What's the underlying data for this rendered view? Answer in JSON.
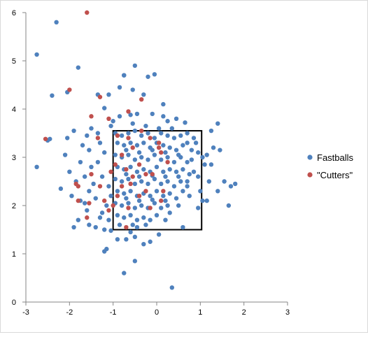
{
  "chart_data": {
    "type": "scatter",
    "title": "",
    "xlabel": "",
    "ylabel": "",
    "xlim": [
      -3,
      3
    ],
    "ylim": [
      0,
      6
    ],
    "x_ticks": [
      -3,
      -2,
      -1,
      0,
      1,
      2,
      3
    ],
    "y_ticks": [
      0,
      1,
      2,
      3,
      4,
      5,
      6
    ],
    "x_tick_labels": [
      "-3",
      "-2",
      "-1",
      "0",
      "1",
      "2",
      "3"
    ],
    "y_tick_labels": [
      "0",
      "1",
      "2",
      "3",
      "4",
      "5",
      "6"
    ],
    "grid": false,
    "legend_position": "right",
    "strike_zone": {
      "x": [
        -1.0,
        1.03
      ],
      "y": [
        1.5,
        3.55
      ]
    },
    "series": [
      {
        "name": "Fastballs",
        "color": "#4f81bd",
        "points": [
          [
            -2.3,
            5.8
          ],
          [
            -2.75,
            5.13
          ],
          [
            -2.4,
            4.28
          ],
          [
            -1.8,
            4.86
          ],
          [
            -2.05,
            4.35
          ],
          [
            -1.35,
            4.3
          ],
          [
            -1.2,
            4.02
          ],
          [
            -0.75,
            4.7
          ],
          [
            -0.5,
            4.9
          ],
          [
            -0.05,
            4.72
          ],
          [
            -0.2,
            4.67
          ],
          [
            -0.55,
            4.4
          ],
          [
            -0.3,
            4.3
          ],
          [
            0.15,
            4.1
          ],
          [
            -0.75,
            4.7
          ],
          [
            -0.85,
            4.45
          ],
          [
            -1.1,
            4.3
          ],
          [
            -2.5,
            3.35
          ],
          [
            -2.45,
            3.38
          ],
          [
            -2.75,
            2.8
          ],
          [
            -2.05,
            3.4
          ],
          [
            -1.9,
            3.55
          ],
          [
            -2.1,
            3.05
          ],
          [
            -2.0,
            2.7
          ],
          [
            -1.85,
            2.5
          ],
          [
            -2.2,
            2.35
          ],
          [
            -1.95,
            2.2
          ],
          [
            -1.75,
            2.1
          ],
          [
            -1.6,
            1.9
          ],
          [
            -1.8,
            1.7
          ],
          [
            -1.9,
            1.55
          ],
          [
            -1.55,
            1.6
          ],
          [
            -1.4,
            1.55
          ],
          [
            -1.2,
            1.5
          ],
          [
            -1.05,
            1.48
          ],
          [
            -1.3,
            1.75
          ],
          [
            -1.7,
            3.25
          ],
          [
            -1.6,
            3.45
          ],
          [
            -1.5,
            3.6
          ],
          [
            -1.35,
            3.5
          ],
          [
            -1.55,
            3.15
          ],
          [
            -1.75,
            2.9
          ],
          [
            -1.5,
            2.8
          ],
          [
            -1.65,
            2.6
          ],
          [
            -1.45,
            2.45
          ],
          [
            -1.55,
            2.3
          ],
          [
            -1.4,
            2.15
          ],
          [
            -1.65,
            2.05
          ],
          [
            -1.35,
            2.9
          ],
          [
            -1.2,
            3.1
          ],
          [
            -1.3,
            3.3
          ],
          [
            -1.25,
            2.6
          ],
          [
            -1.1,
            2.4
          ],
          [
            -1.05,
            2.2
          ],
          [
            -1.15,
            2.0
          ],
          [
            -1.25,
            1.85
          ],
          [
            -1.1,
            1.7
          ],
          [
            -1.05,
            3.65
          ],
          [
            -1.0,
            3.75
          ],
          [
            -0.85,
            3.85
          ],
          [
            -0.6,
            3.88
          ],
          [
            -0.45,
            3.9
          ],
          [
            -0.1,
            3.9
          ],
          [
            0.15,
            3.85
          ],
          [
            0.25,
            3.75
          ],
          [
            0.45,
            3.8
          ],
          [
            0.65,
            3.72
          ],
          [
            0.7,
            3.5
          ],
          [
            0.85,
            3.4
          ],
          [
            0.9,
            3.3
          ],
          [
            0.95,
            3.1
          ],
          [
            1.05,
            3.0
          ],
          [
            1.1,
            2.85
          ],
          [
            0.95,
            2.6
          ],
          [
            1.0,
            2.3
          ],
          [
            1.05,
            2.1
          ],
          [
            0.95,
            1.95
          ],
          [
            0.6,
            1.55
          ],
          [
            1.25,
            3.55
          ],
          [
            1.3,
            3.2
          ],
          [
            1.45,
            3.15
          ],
          [
            1.25,
            2.85
          ],
          [
            1.2,
            2.5
          ],
          [
            1.4,
            2.3
          ],
          [
            1.15,
            2.1
          ],
          [
            1.55,
            2.5
          ],
          [
            1.7,
            2.4
          ],
          [
            1.8,
            2.45
          ],
          [
            1.65,
            2.0
          ],
          [
            1.4,
            3.7
          ],
          [
            1.15,
            3.05
          ],
          [
            0.8,
            2.95
          ],
          [
            0.85,
            2.7
          ],
          [
            0.7,
            2.5
          ],
          [
            0.75,
            2.2
          ],
          [
            0.5,
            2.0
          ],
          [
            0.3,
            1.85
          ],
          [
            0.2,
            1.7
          ],
          [
            -0.9,
            1.3
          ],
          [
            -0.7,
            1.3
          ],
          [
            -0.5,
            1.35
          ],
          [
            -0.3,
            1.2
          ],
          [
            -1.15,
            1.1
          ],
          [
            -1.2,
            1.05
          ],
          [
            -0.75,
            0.6
          ],
          [
            -0.5,
            0.85
          ],
          [
            0.35,
            0.3
          ],
          [
            0.05,
            1.4
          ],
          [
            -0.15,
            1.25
          ],
          [
            -0.6,
            1.45
          ],
          [
            -0.45,
            1.55
          ],
          [
            -0.95,
            3.5
          ],
          [
            -0.8,
            3.45
          ],
          [
            -0.65,
            3.5
          ],
          [
            -0.5,
            3.55
          ],
          [
            -0.35,
            3.45
          ],
          [
            -0.2,
            3.5
          ],
          [
            -0.05,
            3.4
          ],
          [
            0.1,
            3.5
          ],
          [
            0.25,
            3.45
          ],
          [
            0.4,
            3.4
          ],
          [
            0.55,
            3.45
          ],
          [
            0.7,
            3.3
          ],
          [
            -0.9,
            3.3
          ],
          [
            -0.75,
            3.25
          ],
          [
            -0.6,
            3.3
          ],
          [
            -0.45,
            3.25
          ],
          [
            -0.3,
            3.3
          ],
          [
            -0.15,
            3.2
          ],
          [
            0.0,
            3.3
          ],
          [
            0.15,
            3.25
          ],
          [
            0.3,
            3.2
          ],
          [
            0.45,
            3.15
          ],
          [
            0.6,
            3.25
          ],
          [
            0.8,
            3.15
          ],
          [
            -0.95,
            3.05
          ],
          [
            -0.8,
            3.0
          ],
          [
            -0.65,
            3.05
          ],
          [
            -0.5,
            2.95
          ],
          [
            -0.35,
            3.0
          ],
          [
            -0.2,
            2.95
          ],
          [
            -0.05,
            3.05
          ],
          [
            0.1,
            2.95
          ],
          [
            0.25,
            3.0
          ],
          [
            0.4,
            2.9
          ],
          [
            0.55,
            3.0
          ],
          [
            0.7,
            2.9
          ],
          [
            -0.9,
            2.8
          ],
          [
            -0.75,
            2.75
          ],
          [
            -0.6,
            2.8
          ],
          [
            -0.45,
            2.7
          ],
          [
            -0.3,
            2.75
          ],
          [
            -0.15,
            2.7
          ],
          [
            0.0,
            2.8
          ],
          [
            0.15,
            2.7
          ],
          [
            0.3,
            2.75
          ],
          [
            0.45,
            2.7
          ],
          [
            0.6,
            2.75
          ],
          [
            0.75,
            2.65
          ],
          [
            -0.95,
            2.55
          ],
          [
            -0.8,
            2.5
          ],
          [
            -0.65,
            2.55
          ],
          [
            -0.5,
            2.45
          ],
          [
            -0.35,
            2.5
          ],
          [
            -0.2,
            2.45
          ],
          [
            -0.05,
            2.55
          ],
          [
            0.1,
            2.45
          ],
          [
            0.25,
            2.5
          ],
          [
            0.4,
            2.4
          ],
          [
            0.55,
            2.5
          ],
          [
            0.7,
            2.4
          ],
          [
            -0.9,
            2.3
          ],
          [
            -0.75,
            2.25
          ],
          [
            -0.6,
            2.3
          ],
          [
            -0.45,
            2.2
          ],
          [
            -0.3,
            2.25
          ],
          [
            -0.15,
            2.2
          ],
          [
            0.0,
            2.3
          ],
          [
            0.15,
            2.2
          ],
          [
            0.3,
            2.25
          ],
          [
            0.45,
            2.15
          ],
          [
            0.6,
            2.3
          ],
          [
            -0.95,
            2.05
          ],
          [
            -0.8,
            2.0
          ],
          [
            -0.65,
            2.05
          ],
          [
            -0.5,
            1.95
          ],
          [
            -0.35,
            2.0
          ],
          [
            -0.2,
            1.95
          ],
          [
            -0.05,
            2.05
          ],
          [
            0.1,
            1.95
          ],
          [
            0.25,
            2.0
          ],
          [
            -0.9,
            1.8
          ],
          [
            -0.75,
            1.75
          ],
          [
            -0.6,
            1.8
          ],
          [
            -0.45,
            1.7
          ],
          [
            -0.3,
            1.75
          ],
          [
            -0.15,
            1.7
          ],
          [
            0.0,
            1.8
          ],
          [
            -0.85,
            1.6
          ],
          [
            -0.55,
            1.6
          ],
          [
            -0.25,
            1.6
          ],
          [
            -0.7,
            3.15
          ],
          [
            -0.4,
            3.1
          ],
          [
            -0.1,
            3.15
          ],
          [
            0.2,
            3.1
          ],
          [
            0.5,
            3.05
          ],
          [
            -0.7,
            2.65
          ],
          [
            -0.4,
            2.6
          ],
          [
            -0.1,
            2.62
          ],
          [
            0.2,
            2.6
          ],
          [
            0.5,
            2.6
          ],
          [
            -0.7,
            2.15
          ],
          [
            -0.4,
            2.1
          ],
          [
            -0.1,
            2.12
          ],
          [
            0.2,
            2.1
          ],
          [
            -0.55,
            3.7
          ],
          [
            -0.25,
            3.65
          ],
          [
            0.05,
            3.6
          ],
          [
            0.35,
            3.6
          ]
        ]
      },
      {
        "name": "\"Cutters\"",
        "color": "#c0504d",
        "points": [
          [
            -1.6,
            6.0
          ],
          [
            -2.0,
            4.4
          ],
          [
            -1.3,
            4.25
          ],
          [
            -0.35,
            4.2
          ],
          [
            -0.65,
            3.95
          ],
          [
            -1.5,
            3.85
          ],
          [
            -1.1,
            3.8
          ],
          [
            -2.55,
            3.38
          ],
          [
            -1.35,
            3.4
          ],
          [
            -0.9,
            3.45
          ],
          [
            -0.65,
            3.4
          ],
          [
            -0.35,
            3.55
          ],
          [
            -0.15,
            3.4
          ],
          [
            0.05,
            3.3
          ],
          [
            0.1,
            3.1
          ],
          [
            -0.55,
            3.2
          ],
          [
            -0.8,
            3.05
          ],
          [
            -0.95,
            2.85
          ],
          [
            -1.05,
            2.7
          ],
          [
            -0.7,
            2.75
          ],
          [
            -0.4,
            2.85
          ],
          [
            -0.55,
            2.6
          ],
          [
            -0.25,
            2.65
          ],
          [
            -0.8,
            2.4
          ],
          [
            -0.6,
            2.45
          ],
          [
            -0.9,
            2.2
          ],
          [
            -1.0,
            2.0
          ],
          [
            -0.65,
            1.95
          ],
          [
            -0.7,
            1.55
          ],
          [
            -1.1,
            1.9
          ],
          [
            -1.2,
            2.1
          ],
          [
            -1.3,
            2.4
          ],
          [
            -1.55,
            2.05
          ],
          [
            -1.6,
            1.75
          ],
          [
            -1.8,
            2.1
          ],
          [
            -1.8,
            2.4
          ],
          [
            -1.85,
            2.45
          ],
          [
            -1.5,
            2.65
          ],
          [
            0.05,
            3.2
          ],
          [
            0.25,
            2.9
          ],
          [
            0.15,
            2.3
          ],
          [
            0.1,
            2.1
          ],
          [
            -0.25,
            2.3
          ],
          [
            -0.15,
            1.95
          ],
          [
            -0.1,
            2.65
          ],
          [
            -0.4,
            2.2
          ]
        ]
      }
    ]
  }
}
